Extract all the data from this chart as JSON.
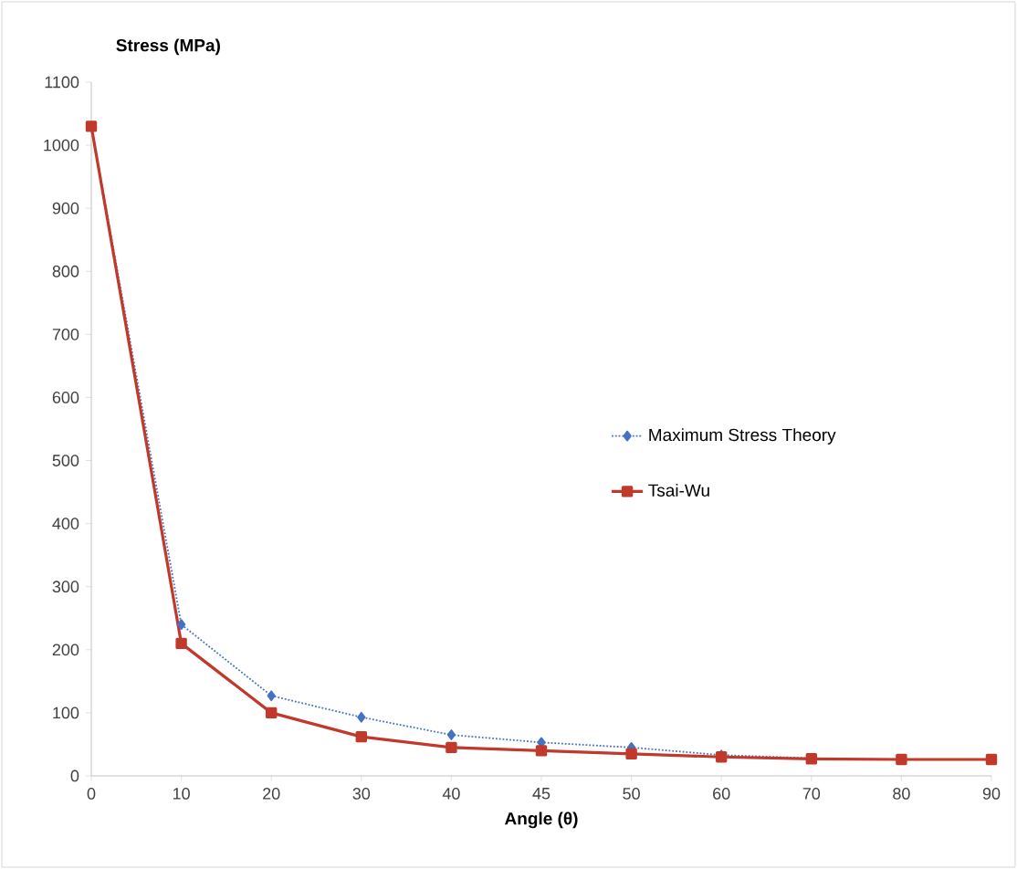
{
  "chart_data": {
    "type": "line",
    "xlabel": "Angle (θ)",
    "ylabel": "Stress (MPa)",
    "categories": [
      "0",
      "10",
      "20",
      "30",
      "40",
      "45",
      "50",
      "60",
      "70",
      "80",
      "90"
    ],
    "ylim": [
      0,
      1100
    ],
    "yticks": [
      0,
      100,
      200,
      300,
      400,
      500,
      600,
      700,
      800,
      900,
      1000,
      1100
    ],
    "legend": "right",
    "grid": false,
    "series": [
      {
        "name": "Maximum Stress Theory",
        "color": "#4472c4",
        "marker": "diamond",
        "line_style": "dotted",
        "values": [
          1030,
          240,
          127,
          93,
          65,
          53,
          45,
          33,
          28,
          null,
          null
        ]
      },
      {
        "name": "Tsai-Wu",
        "color": "#c0392b",
        "marker": "square",
        "line_style": "solid",
        "values": [
          1030,
          210,
          100,
          62,
          45,
          40,
          35,
          30,
          27,
          26,
          26
        ]
      }
    ]
  }
}
